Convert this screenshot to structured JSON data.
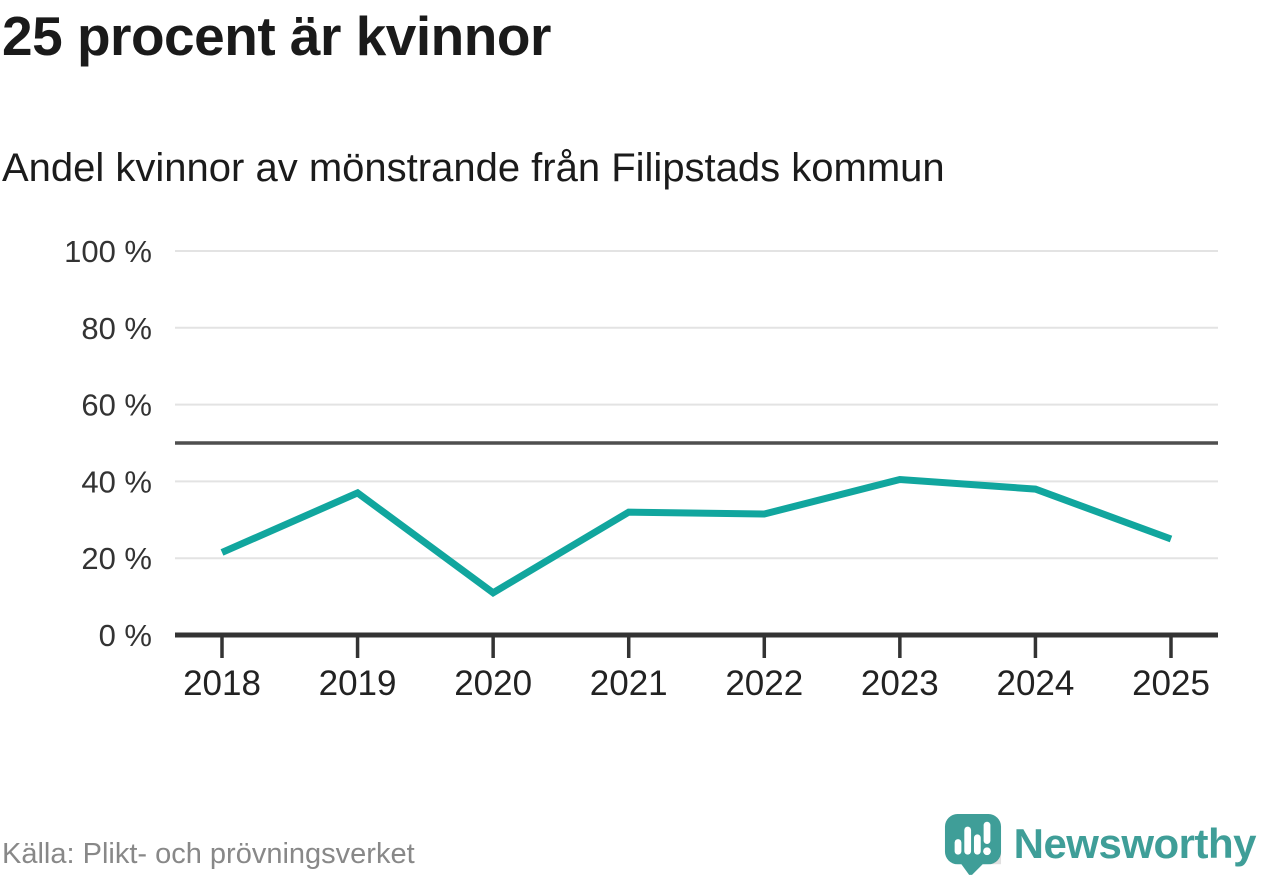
{
  "page": {
    "background": "#ffffff"
  },
  "header": {
    "title": "25 procent är kvinnor",
    "subtitle": "Andel kvinnor av mönstrande från Filipstads kommun"
  },
  "chart_data": {
    "type": "line",
    "title": "25 procent är kvinnor",
    "subtitle": "Andel kvinnor av mönstrande från Filipstads kommun",
    "categories": [
      "2018",
      "2019",
      "2020",
      "2021",
      "2022",
      "2023",
      "2024",
      "2025"
    ],
    "series": [
      {
        "name": "Andel kvinnor av mönstrande",
        "values": [
          21.5,
          37,
          11,
          32,
          31.5,
          40.5,
          38,
          25
        ]
      }
    ],
    "unit": "%",
    "ylim": [
      0,
      100
    ],
    "yticks": [
      0,
      20,
      40,
      60,
      80,
      100
    ],
    "ytick_suffix": " %",
    "reference_line": 50,
    "grid": true,
    "legend": "none",
    "colors": {
      "line": "#11a69e",
      "grid": "#e3e3e3",
      "reference": "#4f4f4f",
      "axis": "#333333",
      "tick_label": "#333333",
      "x_label": "#222222"
    }
  },
  "footer": {
    "source": "Källa: Plikt- och prövningsverket",
    "brand": "Newsworthy",
    "brand_icon": "newsworthy-speech-bubble-bar-chart-icon",
    "brand_color": "#3f9e98"
  }
}
